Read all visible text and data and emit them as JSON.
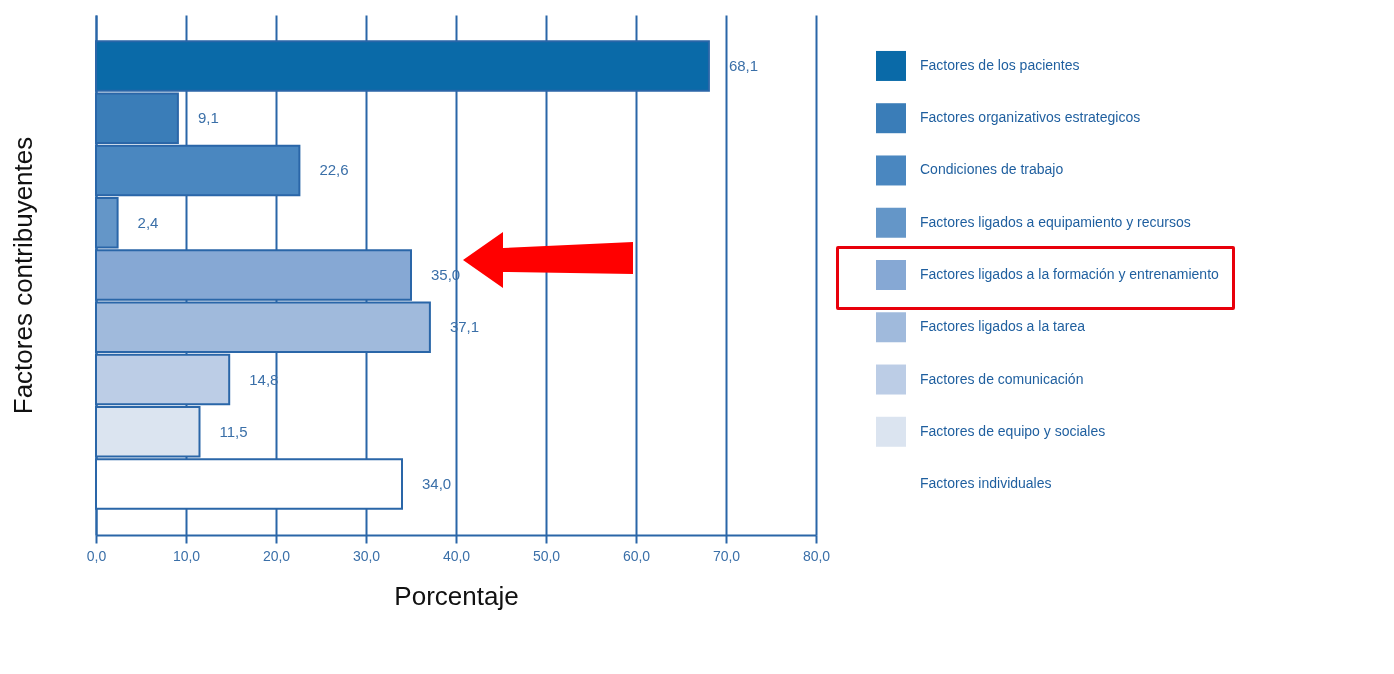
{
  "chart_data": {
    "type": "bar",
    "orientation": "horizontal",
    "xlabel": "Porcentaje",
    "ylabel": "Factores contribuyentes",
    "categories": [
      "Factores de los pacientes",
      "Factores organizativos estrategicos",
      "Condiciones de trabajo",
      "Factores ligados a equipamiento y recursos",
      "Factores ligados a la formación y entrenamiento",
      "Factores ligados a la tarea",
      "Factores de comunicación",
      "Factores de equipo y sociales",
      "Factores individuales"
    ],
    "values": [
      68.1,
      9.1,
      22.6,
      2.4,
      35.0,
      37.1,
      14.8,
      11.5,
      34.0
    ],
    "value_labels": [
      "68,1",
      "9,1",
      "22,6",
      "2,4",
      "35,0",
      "37,1",
      "14,8",
      "11,5",
      "34,0"
    ],
    "colors": [
      "#0a6aa8",
      "#3a7db8",
      "#4a87c0",
      "#6496c8",
      "#86a8d4",
      "#a0badc",
      "#bccde6",
      "#dbe4f0",
      "#ffffff"
    ],
    "xlim": [
      0,
      80
    ],
    "xticks": [
      {
        "value": 0,
        "label": "0,0"
      },
      {
        "value": 10,
        "label": "10,0"
      },
      {
        "value": 20,
        "label": "20,0"
      },
      {
        "value": 30,
        "label": "30,0"
      },
      {
        "value": 40,
        "label": "40,0"
      },
      {
        "value": 50,
        "label": "50,0"
      },
      {
        "value": 60,
        "label": "60,0"
      },
      {
        "value": 70,
        "label": "70,0"
      },
      {
        "value": 80,
        "label": "80,0"
      }
    ],
    "grid": "x",
    "tick_labels": "x"
  }
}
